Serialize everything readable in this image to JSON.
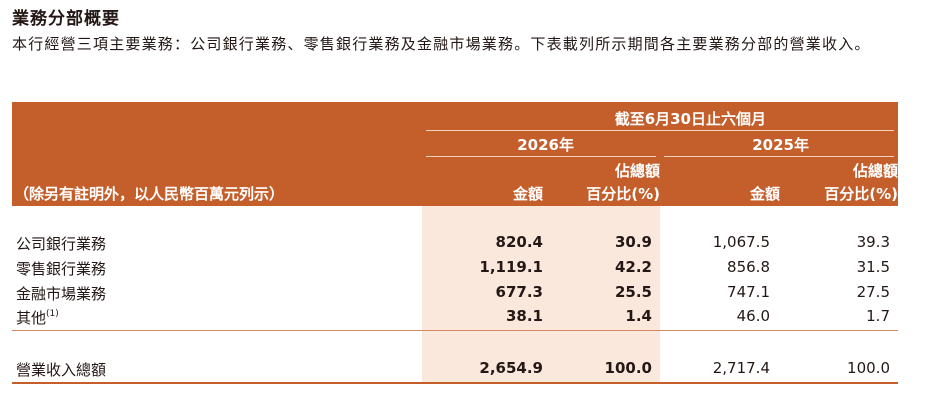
{
  "heading": "業務分部概要",
  "intro": "本行經營三項主要業務：公司銀行業務、零售銀行業務及金融市場業務。下表載列所示期間各主要業務分部的營業收入。",
  "table": {
    "period_header": "截至6月30日止六個月",
    "year_2026": "2026年",
    "year_2025": "2025年",
    "unit_note": "（除另有註明外，以人民幣百萬元列示）",
    "col_amount": "金額",
    "col_share_line1": "佔總額",
    "col_share_line2": "百分比(%)",
    "rows": [
      {
        "label": "公司銀行業務",
        "note": "",
        "amt_2026": "820.4",
        "pct_2026": "30.9",
        "amt_2025": "1,067.5",
        "pct_2025": "39.3"
      },
      {
        "label": "零售銀行業務",
        "note": "",
        "amt_2026": "1,119.1",
        "pct_2026": "42.2",
        "amt_2025": "856.8",
        "pct_2025": "31.5"
      },
      {
        "label": "金融市場業務",
        "note": "",
        "amt_2026": "677.3",
        "pct_2026": "25.5",
        "amt_2025": "747.1",
        "pct_2025": "27.5"
      },
      {
        "label": "其他",
        "note": "(1)",
        "amt_2026": "38.1",
        "pct_2026": "1.4",
        "amt_2025": "46.0",
        "pct_2025": "1.7"
      }
    ],
    "total": {
      "label": "營業收入總額",
      "amt_2026": "2,654.9",
      "pct_2026": "100.0",
      "amt_2025": "2,717.4",
      "pct_2025": "100.0"
    }
  },
  "colors": {
    "header_bg": "#c45e2b",
    "shade_2026": "#fbe8dc",
    "text": "#231815"
  }
}
